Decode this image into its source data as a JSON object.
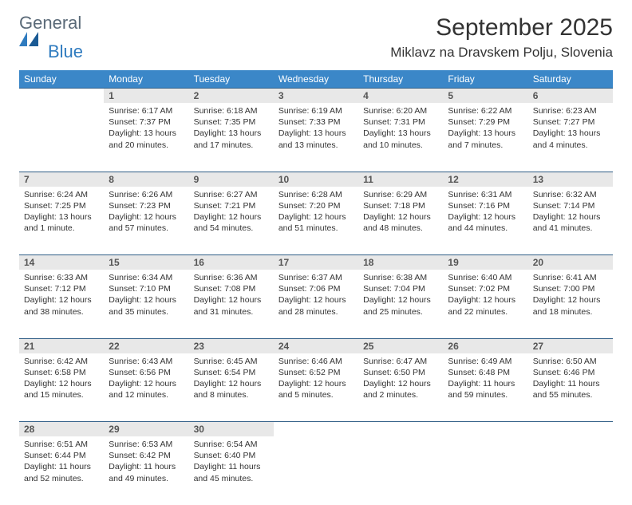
{
  "brand": {
    "general": "General",
    "blue": "Blue"
  },
  "title": "September 2025",
  "location": "Miklavz na Dravskem Polju, Slovenia",
  "colors": {
    "header_bg": "#3b87c8",
    "header_text": "#ffffff",
    "daynum_bg": "#e8e8e8",
    "row_border": "#2f5d86",
    "body_text": "#333333",
    "logo_gray": "#5a6a78",
    "logo_blue": "#2f7bbf",
    "background": "#ffffff"
  },
  "typography": {
    "title_fontsize": 30,
    "location_fontsize": 17,
    "dayheader_fontsize": 12,
    "cell_fontsize": 10.5,
    "logo_fontsize": 22
  },
  "day_headers": [
    "Sunday",
    "Monday",
    "Tuesday",
    "Wednesday",
    "Thursday",
    "Friday",
    "Saturday"
  ],
  "weeks": [
    {
      "nums": [
        "",
        "1",
        "2",
        "3",
        "4",
        "5",
        "6"
      ],
      "cells": [
        null,
        {
          "sunrise": "Sunrise: 6:17 AM",
          "sunset": "Sunset: 7:37 PM",
          "daylight1": "Daylight: 13 hours",
          "daylight2": "and 20 minutes."
        },
        {
          "sunrise": "Sunrise: 6:18 AM",
          "sunset": "Sunset: 7:35 PM",
          "daylight1": "Daylight: 13 hours",
          "daylight2": "and 17 minutes."
        },
        {
          "sunrise": "Sunrise: 6:19 AM",
          "sunset": "Sunset: 7:33 PM",
          "daylight1": "Daylight: 13 hours",
          "daylight2": "and 13 minutes."
        },
        {
          "sunrise": "Sunrise: 6:20 AM",
          "sunset": "Sunset: 7:31 PM",
          "daylight1": "Daylight: 13 hours",
          "daylight2": "and 10 minutes."
        },
        {
          "sunrise": "Sunrise: 6:22 AM",
          "sunset": "Sunset: 7:29 PM",
          "daylight1": "Daylight: 13 hours",
          "daylight2": "and 7 minutes."
        },
        {
          "sunrise": "Sunrise: 6:23 AM",
          "sunset": "Sunset: 7:27 PM",
          "daylight1": "Daylight: 13 hours",
          "daylight2": "and 4 minutes."
        }
      ]
    },
    {
      "nums": [
        "7",
        "8",
        "9",
        "10",
        "11",
        "12",
        "13"
      ],
      "cells": [
        {
          "sunrise": "Sunrise: 6:24 AM",
          "sunset": "Sunset: 7:25 PM",
          "daylight1": "Daylight: 13 hours",
          "daylight2": "and 1 minute."
        },
        {
          "sunrise": "Sunrise: 6:26 AM",
          "sunset": "Sunset: 7:23 PM",
          "daylight1": "Daylight: 12 hours",
          "daylight2": "and 57 minutes."
        },
        {
          "sunrise": "Sunrise: 6:27 AM",
          "sunset": "Sunset: 7:21 PM",
          "daylight1": "Daylight: 12 hours",
          "daylight2": "and 54 minutes."
        },
        {
          "sunrise": "Sunrise: 6:28 AM",
          "sunset": "Sunset: 7:20 PM",
          "daylight1": "Daylight: 12 hours",
          "daylight2": "and 51 minutes."
        },
        {
          "sunrise": "Sunrise: 6:29 AM",
          "sunset": "Sunset: 7:18 PM",
          "daylight1": "Daylight: 12 hours",
          "daylight2": "and 48 minutes."
        },
        {
          "sunrise": "Sunrise: 6:31 AM",
          "sunset": "Sunset: 7:16 PM",
          "daylight1": "Daylight: 12 hours",
          "daylight2": "and 44 minutes."
        },
        {
          "sunrise": "Sunrise: 6:32 AM",
          "sunset": "Sunset: 7:14 PM",
          "daylight1": "Daylight: 12 hours",
          "daylight2": "and 41 minutes."
        }
      ]
    },
    {
      "nums": [
        "14",
        "15",
        "16",
        "17",
        "18",
        "19",
        "20"
      ],
      "cells": [
        {
          "sunrise": "Sunrise: 6:33 AM",
          "sunset": "Sunset: 7:12 PM",
          "daylight1": "Daylight: 12 hours",
          "daylight2": "and 38 minutes."
        },
        {
          "sunrise": "Sunrise: 6:34 AM",
          "sunset": "Sunset: 7:10 PM",
          "daylight1": "Daylight: 12 hours",
          "daylight2": "and 35 minutes."
        },
        {
          "sunrise": "Sunrise: 6:36 AM",
          "sunset": "Sunset: 7:08 PM",
          "daylight1": "Daylight: 12 hours",
          "daylight2": "and 31 minutes."
        },
        {
          "sunrise": "Sunrise: 6:37 AM",
          "sunset": "Sunset: 7:06 PM",
          "daylight1": "Daylight: 12 hours",
          "daylight2": "and 28 minutes."
        },
        {
          "sunrise": "Sunrise: 6:38 AM",
          "sunset": "Sunset: 7:04 PM",
          "daylight1": "Daylight: 12 hours",
          "daylight2": "and 25 minutes."
        },
        {
          "sunrise": "Sunrise: 6:40 AM",
          "sunset": "Sunset: 7:02 PM",
          "daylight1": "Daylight: 12 hours",
          "daylight2": "and 22 minutes."
        },
        {
          "sunrise": "Sunrise: 6:41 AM",
          "sunset": "Sunset: 7:00 PM",
          "daylight1": "Daylight: 12 hours",
          "daylight2": "and 18 minutes."
        }
      ]
    },
    {
      "nums": [
        "21",
        "22",
        "23",
        "24",
        "25",
        "26",
        "27"
      ],
      "cells": [
        {
          "sunrise": "Sunrise: 6:42 AM",
          "sunset": "Sunset: 6:58 PM",
          "daylight1": "Daylight: 12 hours",
          "daylight2": "and 15 minutes."
        },
        {
          "sunrise": "Sunrise: 6:43 AM",
          "sunset": "Sunset: 6:56 PM",
          "daylight1": "Daylight: 12 hours",
          "daylight2": "and 12 minutes."
        },
        {
          "sunrise": "Sunrise: 6:45 AM",
          "sunset": "Sunset: 6:54 PM",
          "daylight1": "Daylight: 12 hours",
          "daylight2": "and 8 minutes."
        },
        {
          "sunrise": "Sunrise: 6:46 AM",
          "sunset": "Sunset: 6:52 PM",
          "daylight1": "Daylight: 12 hours",
          "daylight2": "and 5 minutes."
        },
        {
          "sunrise": "Sunrise: 6:47 AM",
          "sunset": "Sunset: 6:50 PM",
          "daylight1": "Daylight: 12 hours",
          "daylight2": "and 2 minutes."
        },
        {
          "sunrise": "Sunrise: 6:49 AM",
          "sunset": "Sunset: 6:48 PM",
          "daylight1": "Daylight: 11 hours",
          "daylight2": "and 59 minutes."
        },
        {
          "sunrise": "Sunrise: 6:50 AM",
          "sunset": "Sunset: 6:46 PM",
          "daylight1": "Daylight: 11 hours",
          "daylight2": "and 55 minutes."
        }
      ]
    },
    {
      "nums": [
        "28",
        "29",
        "30",
        "",
        "",
        "",
        ""
      ],
      "cells": [
        {
          "sunrise": "Sunrise: 6:51 AM",
          "sunset": "Sunset: 6:44 PM",
          "daylight1": "Daylight: 11 hours",
          "daylight2": "and 52 minutes."
        },
        {
          "sunrise": "Sunrise: 6:53 AM",
          "sunset": "Sunset: 6:42 PM",
          "daylight1": "Daylight: 11 hours",
          "daylight2": "and 49 minutes."
        },
        {
          "sunrise": "Sunrise: 6:54 AM",
          "sunset": "Sunset: 6:40 PM",
          "daylight1": "Daylight: 11 hours",
          "daylight2": "and 45 minutes."
        },
        null,
        null,
        null,
        null
      ]
    }
  ]
}
